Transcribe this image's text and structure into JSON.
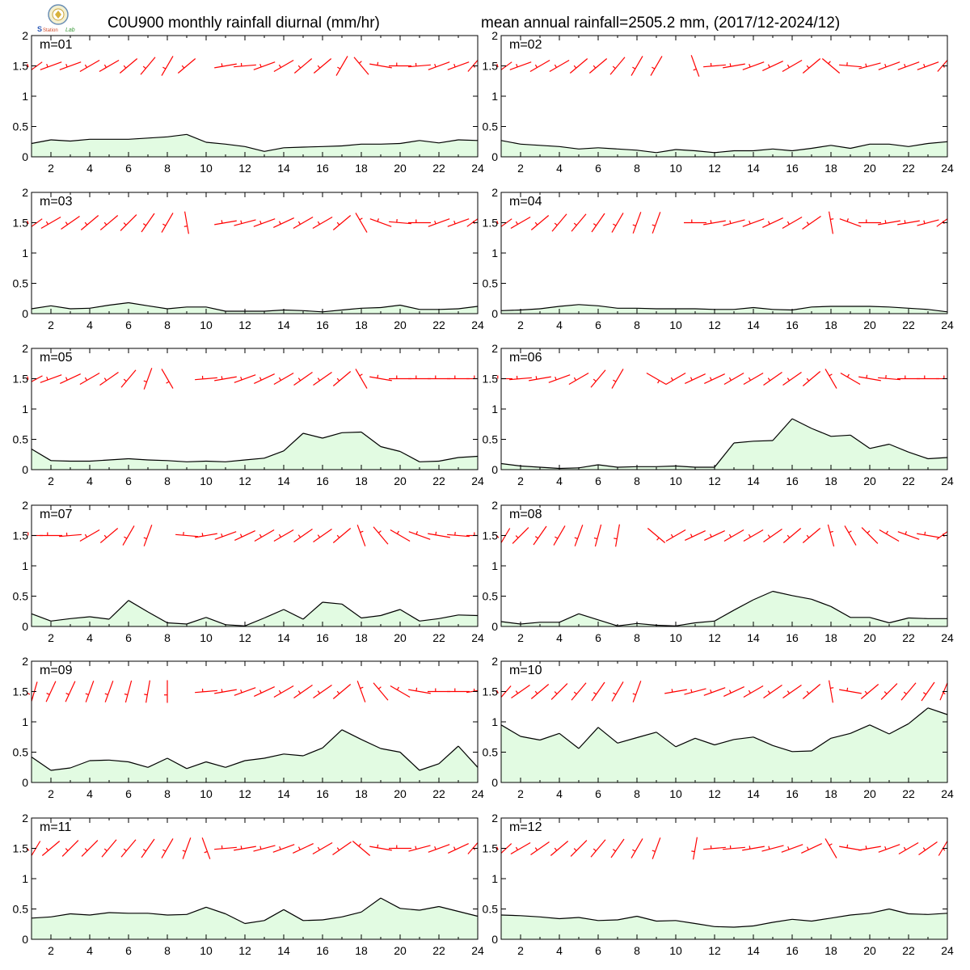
{
  "header": {
    "title_left": "C0U900 monthly rainfall diurnal (mm/hr)",
    "title_right": "mean annual rainfall=2505.2 mm, (2017/12-2024/12)",
    "logo_text": "Lab"
  },
  "colors": {
    "fill": "#e2fbe2",
    "line": "#000000",
    "wind": "#ff0000",
    "axis": "#000000"
  },
  "chart_data": [
    {
      "type": "area",
      "label": "m=01",
      "x": [
        1,
        2,
        3,
        4,
        5,
        6,
        7,
        8,
        9,
        10,
        11,
        12,
        13,
        14,
        15,
        16,
        17,
        18,
        19,
        20,
        21,
        22,
        23,
        24
      ],
      "ylim": [
        0,
        2
      ],
      "yticks": [
        "0",
        "0.5",
        "1",
        "1.5",
        "2"
      ],
      "xticks": [
        "2",
        "4",
        "6",
        "8",
        "10",
        "12",
        "14",
        "16",
        "18",
        "20",
        "22",
        "24"
      ],
      "series": [
        {
          "values": [
            0.22,
            0.28,
            0.26,
            0.29,
            0.29,
            0.29,
            0.31,
            0.33,
            0.37,
            0.24,
            0.21,
            0.17,
            0.09,
            0.15,
            0.16,
            0.17,
            0.18,
            0.21,
            0.21,
            0.22,
            0.27,
            0.23,
            0.28,
            0.27
          ]
        }
      ],
      "wind_dir": [
        250,
        250,
        250,
        240,
        240,
        230,
        220,
        210,
        230,
        null,
        260,
        265,
        250,
        240,
        230,
        230,
        210,
        320,
        280,
        270,
        265,
        250,
        250,
        240
      ]
    },
    {
      "type": "area",
      "label": "m=02",
      "x": [
        1,
        2,
        3,
        4,
        5,
        6,
        7,
        8,
        9,
        10,
        11,
        12,
        13,
        14,
        15,
        16,
        17,
        18,
        19,
        20,
        21,
        22,
        23,
        24
      ],
      "ylim": [
        0,
        2
      ],
      "yticks": [
        "0",
        "0.5",
        "1",
        "1.5",
        "2"
      ],
      "xticks": [
        "2",
        "4",
        "6",
        "8",
        "10",
        "12",
        "14",
        "16",
        "18",
        "20",
        "22",
        "24"
      ],
      "series": [
        {
          "values": [
            0.27,
            0.21,
            0.19,
            0.17,
            0.13,
            0.15,
            0.13,
            0.11,
            0.07,
            0.12,
            0.1,
            0.07,
            0.1,
            0.1,
            0.13,
            0.1,
            0.14,
            0.19,
            0.14,
            0.21,
            0.21,
            0.17,
            0.22,
            0.25
          ]
        }
      ],
      "wind_dir": [
        250,
        250,
        240,
        240,
        230,
        230,
        220,
        210,
        210,
        null,
        160,
        265,
        260,
        250,
        245,
        240,
        230,
        310,
        275,
        255,
        250,
        250,
        250,
        240
      ]
    },
    {
      "type": "area",
      "label": "m=03",
      "x": [
        1,
        2,
        3,
        4,
        5,
        6,
        7,
        8,
        9,
        10,
        11,
        12,
        13,
        14,
        15,
        16,
        17,
        18,
        19,
        20,
        21,
        22,
        23,
        24
      ],
      "ylim": [
        0,
        2
      ],
      "yticks": [
        "0",
        "0.5",
        "1",
        "1.5",
        "2"
      ],
      "xticks": [
        "2",
        "4",
        "6",
        "8",
        "10",
        "12",
        "14",
        "16",
        "18",
        "20",
        "22",
        "24"
      ],
      "series": [
        {
          "values": [
            0.08,
            0.13,
            0.08,
            0.09,
            0.14,
            0.18,
            0.13,
            0.08,
            0.11,
            0.11,
            0.04,
            0.04,
            0.04,
            0.06,
            0.05,
            0.03,
            0.06,
            0.09,
            0.1,
            0.14,
            0.07,
            0.07,
            0.08,
            0.12
          ]
        }
      ],
      "wind_dir": [
        250,
        240,
        235,
        230,
        230,
        225,
        215,
        210,
        170,
        null,
        260,
        255,
        250,
        245,
        240,
        240,
        230,
        330,
        290,
        275,
        270,
        250,
        250,
        250
      ]
    },
    {
      "type": "area",
      "label": "m=04",
      "x": [
        1,
        2,
        3,
        4,
        5,
        6,
        7,
        8,
        9,
        10,
        11,
        12,
        13,
        14,
        15,
        16,
        17,
        18,
        19,
        20,
        21,
        22,
        23,
        24
      ],
      "ylim": [
        0,
        2
      ],
      "yticks": [
        "0",
        "0.5",
        "1",
        "1.5",
        "2"
      ],
      "xticks": [
        "2",
        "4",
        "6",
        "8",
        "10",
        "12",
        "14",
        "16",
        "18",
        "20",
        "22",
        "24"
      ],
      "series": [
        {
          "values": [
            0.05,
            0.06,
            0.08,
            0.12,
            0.15,
            0.13,
            0.09,
            0.09,
            0.08,
            0.08,
            0.08,
            0.07,
            0.07,
            0.1,
            0.07,
            0.06,
            0.11,
            0.12,
            0.12,
            0.12,
            0.11,
            0.09,
            0.07,
            0.03
          ]
        }
      ],
      "wind_dir": [
        250,
        240,
        230,
        220,
        220,
        215,
        210,
        200,
        200,
        null,
        270,
        260,
        255,
        250,
        245,
        240,
        235,
        350,
        290,
        270,
        260,
        260,
        255,
        250
      ]
    },
    {
      "type": "area",
      "label": "m=05",
      "x": [
        1,
        2,
        3,
        4,
        5,
        6,
        7,
        8,
        9,
        10,
        11,
        12,
        13,
        14,
        15,
        16,
        17,
        18,
        19,
        20,
        21,
        22,
        23,
        24
      ],
      "ylim": [
        0,
        2
      ],
      "yticks": [
        "0",
        "0.5",
        "1",
        "1.5",
        "2"
      ],
      "xticks": [
        "2",
        "4",
        "6",
        "8",
        "10",
        "12",
        "14",
        "16",
        "18",
        "20",
        "22",
        "24"
      ],
      "series": [
        {
          "values": [
            0.34,
            0.15,
            0.14,
            0.14,
            0.16,
            0.18,
            0.16,
            0.15,
            0.13,
            0.14,
            0.13,
            0.16,
            0.19,
            0.31,
            0.6,
            0.52,
            0.61,
            0.62,
            0.38,
            0.3,
            0.13,
            0.14,
            0.2,
            0.22
          ]
        }
      ],
      "wind_dir": [
        255,
        250,
        245,
        240,
        235,
        220,
        200,
        150,
        null,
        265,
        260,
        250,
        245,
        240,
        235,
        235,
        230,
        330,
        280,
        270,
        270,
        270,
        270,
        270
      ]
    },
    {
      "type": "area",
      "label": "m=06",
      "x": [
        1,
        2,
        3,
        4,
        5,
        6,
        7,
        8,
        9,
        10,
        11,
        12,
        13,
        14,
        15,
        16,
        17,
        18,
        19,
        20,
        21,
        22,
        23,
        24
      ],
      "ylim": [
        0,
        2
      ],
      "yticks": [
        "0",
        "0.5",
        "1",
        "1.5",
        "2"
      ],
      "xticks": [
        "2",
        "4",
        "6",
        "8",
        "10",
        "12",
        "14",
        "16",
        "18",
        "20",
        "22",
        "24"
      ],
      "series": [
        {
          "values": [
            0.1,
            0.06,
            0.04,
            0.02,
            0.03,
            0.08,
            0.04,
            0.05,
            0.05,
            0.06,
            0.04,
            0.04,
            0.44,
            0.47,
            0.48,
            0.84,
            0.68,
            0.55,
            0.57,
            0.35,
            0.42,
            0.29,
            0.18,
            0.2
          ]
        }
      ],
      "wind_dir": [
        270,
        265,
        260,
        250,
        240,
        220,
        210,
        null,
        120,
        240,
        245,
        245,
        240,
        240,
        235,
        235,
        230,
        330,
        300,
        280,
        275,
        270,
        270,
        270
      ]
    },
    {
      "type": "area",
      "label": "m=07",
      "x": [
        1,
        2,
        3,
        4,
        5,
        6,
        7,
        8,
        9,
        10,
        11,
        12,
        13,
        14,
        15,
        16,
        17,
        18,
        19,
        20,
        21,
        22,
        23,
        24
      ],
      "ylim": [
        0,
        2
      ],
      "yticks": [
        "0",
        "0.5",
        "1",
        "1.5",
        "2"
      ],
      "xticks": [
        "2",
        "4",
        "6",
        "8",
        "10",
        "12",
        "14",
        "16",
        "18",
        "20",
        "22",
        "24"
      ],
      "series": [
        {
          "values": [
            0.21,
            0.09,
            0.13,
            0.16,
            0.12,
            0.43,
            0.24,
            0.06,
            0.04,
            0.15,
            0.03,
            0.01,
            0.14,
            0.28,
            0.12,
            0.4,
            0.37,
            0.14,
            0.18,
            0.28,
            0.09,
            0.13,
            0.19,
            0.18
          ]
        }
      ],
      "wind_dir": [
        270,
        270,
        265,
        240,
        230,
        210,
        200,
        null,
        275,
        260,
        250,
        245,
        240,
        240,
        235,
        235,
        230,
        340,
        320,
        300,
        290,
        280,
        275,
        270
      ]
    },
    {
      "type": "area",
      "label": "m=08",
      "x": [
        1,
        2,
        3,
        4,
        5,
        6,
        7,
        8,
        9,
        10,
        11,
        12,
        13,
        14,
        15,
        16,
        17,
        18,
        19,
        20,
        21,
        22,
        23,
        24
      ],
      "ylim": [
        0,
        2
      ],
      "yticks": [
        "0",
        "0.5",
        "1",
        "1.5",
        "2"
      ],
      "xticks": [
        "2",
        "4",
        "6",
        "8",
        "10",
        "12",
        "14",
        "16",
        "18",
        "20",
        "22",
        "24"
      ],
      "series": [
        {
          "values": [
            0.08,
            0.04,
            0.07,
            0.07,
            0.21,
            0.11,
            0.01,
            0.05,
            0.02,
            0.01,
            0.06,
            0.09,
            0.27,
            0.44,
            0.58,
            0.51,
            0.45,
            0.33,
            0.15,
            0.15,
            0.06,
            0.14,
            0.13,
            0.13
          ]
        }
      ],
      "wind_dir": [
        230,
        225,
        215,
        210,
        200,
        195,
        190,
        null,
        130,
        240,
        245,
        245,
        240,
        240,
        235,
        230,
        230,
        345,
        330,
        315,
        300,
        290,
        280,
        250
      ]
    },
    {
      "type": "area",
      "label": "m=09",
      "x": [
        1,
        2,
        3,
        4,
        5,
        6,
        7,
        8,
        9,
        10,
        11,
        12,
        13,
        14,
        15,
        16,
        17,
        18,
        19,
        20,
        21,
        22,
        23,
        24
      ],
      "ylim": [
        0,
        2
      ],
      "yticks": [
        "0",
        "0.5",
        "1",
        "1.5",
        "2"
      ],
      "xticks": [
        "2",
        "4",
        "6",
        "8",
        "10",
        "12",
        "14",
        "16",
        "18",
        "20",
        "22",
        "24"
      ],
      "series": [
        {
          "values": [
            0.42,
            0.2,
            0.24,
            0.36,
            0.37,
            0.34,
            0.25,
            0.4,
            0.23,
            0.34,
            0.25,
            0.36,
            0.4,
            0.47,
            0.44,
            0.57,
            0.87,
            0.71,
            0.56,
            0.5,
            0.2,
            0.31,
            0.6,
            0.25
          ]
        }
      ],
      "wind_dir": [
        210,
        205,
        205,
        200,
        200,
        195,
        190,
        180,
        null,
        265,
        260,
        250,
        245,
        240,
        235,
        235,
        230,
        340,
        320,
        300,
        280,
        270,
        270,
        265
      ]
    },
    {
      "type": "area",
      "label": "m=10",
      "x": [
        1,
        2,
        3,
        4,
        5,
        6,
        7,
        8,
        9,
        10,
        11,
        12,
        13,
        14,
        15,
        16,
        17,
        18,
        19,
        20,
        21,
        22,
        23,
        24
      ],
      "ylim": [
        0,
        2
      ],
      "yticks": [
        "0",
        "0.5",
        "1",
        "1.5",
        "2"
      ],
      "xticks": [
        "2",
        "4",
        "6",
        "8",
        "10",
        "12",
        "14",
        "16",
        "18",
        "20",
        "22",
        "24"
      ],
      "series": [
        {
          "values": [
            0.95,
            0.76,
            0.7,
            0.81,
            0.56,
            0.91,
            0.65,
            0.74,
            0.83,
            0.59,
            0.73,
            0.62,
            0.71,
            0.75,
            0.61,
            0.51,
            0.52,
            0.73,
            0.81,
            0.95,
            0.8,
            0.97,
            1.23,
            1.12
          ]
        }
      ],
      "wind_dir": [
        240,
        235,
        230,
        225,
        220,
        215,
        210,
        200,
        null,
        260,
        255,
        250,
        245,
        240,
        235,
        235,
        230,
        350,
        280,
        230,
        225,
        220,
        215,
        220
      ]
    },
    {
      "type": "area",
      "label": "m=11",
      "x": [
        1,
        2,
        3,
        4,
        5,
        6,
        7,
        8,
        9,
        10,
        11,
        12,
        13,
        14,
        15,
        16,
        17,
        18,
        19,
        20,
        21,
        22,
        23,
        24
      ],
      "ylim": [
        0,
        2
      ],
      "yticks": [
        "0",
        "0.5",
        "1",
        "1.5",
        "2"
      ],
      "xticks": [
        "2",
        "4",
        "6",
        "8",
        "10",
        "12",
        "14",
        "16",
        "18",
        "20",
        "22",
        "24"
      ],
      "series": [
        {
          "values": [
            0.35,
            0.37,
            0.42,
            0.4,
            0.44,
            0.43,
            0.43,
            0.4,
            0.41,
            0.53,
            0.42,
            0.26,
            0.31,
            0.49,
            0.31,
            0.32,
            0.37,
            0.45,
            0.68,
            0.51,
            0.48,
            0.54,
            0.46,
            0.38
          ]
        }
      ],
      "wind_dir": [
        230,
        230,
        225,
        225,
        220,
        220,
        215,
        210,
        200,
        160,
        265,
        260,
        255,
        250,
        245,
        240,
        235,
        310,
        280,
        270,
        255,
        250,
        245,
        240
      ]
    },
    {
      "type": "area",
      "label": "m=12",
      "x": [
        1,
        2,
        3,
        4,
        5,
        6,
        7,
        8,
        9,
        10,
        11,
        12,
        13,
        14,
        15,
        16,
        17,
        18,
        19,
        20,
        21,
        22,
        23,
        24
      ],
      "ylim": [
        0,
        2
      ],
      "yticks": [
        "0",
        "0.5",
        "1",
        "1.5",
        "2"
      ],
      "xticks": [
        "2",
        "4",
        "6",
        "8",
        "10",
        "12",
        "14",
        "16",
        "18",
        "20",
        "22",
        "24"
      ],
      "series": [
        {
          "values": [
            0.4,
            0.39,
            0.37,
            0.34,
            0.36,
            0.31,
            0.32,
            0.38,
            0.3,
            0.31,
            0.26,
            0.21,
            0.2,
            0.22,
            0.28,
            0.33,
            0.3,
            0.35,
            0.4,
            0.43,
            0.5,
            0.42,
            0.41,
            0.43
          ]
        }
      ],
      "wind_dir": [
        245,
        240,
        235,
        230,
        225,
        220,
        215,
        210,
        200,
        null,
        190,
        265,
        265,
        260,
        255,
        250,
        245,
        330,
        280,
        260,
        250,
        240,
        235,
        230
      ]
    }
  ]
}
